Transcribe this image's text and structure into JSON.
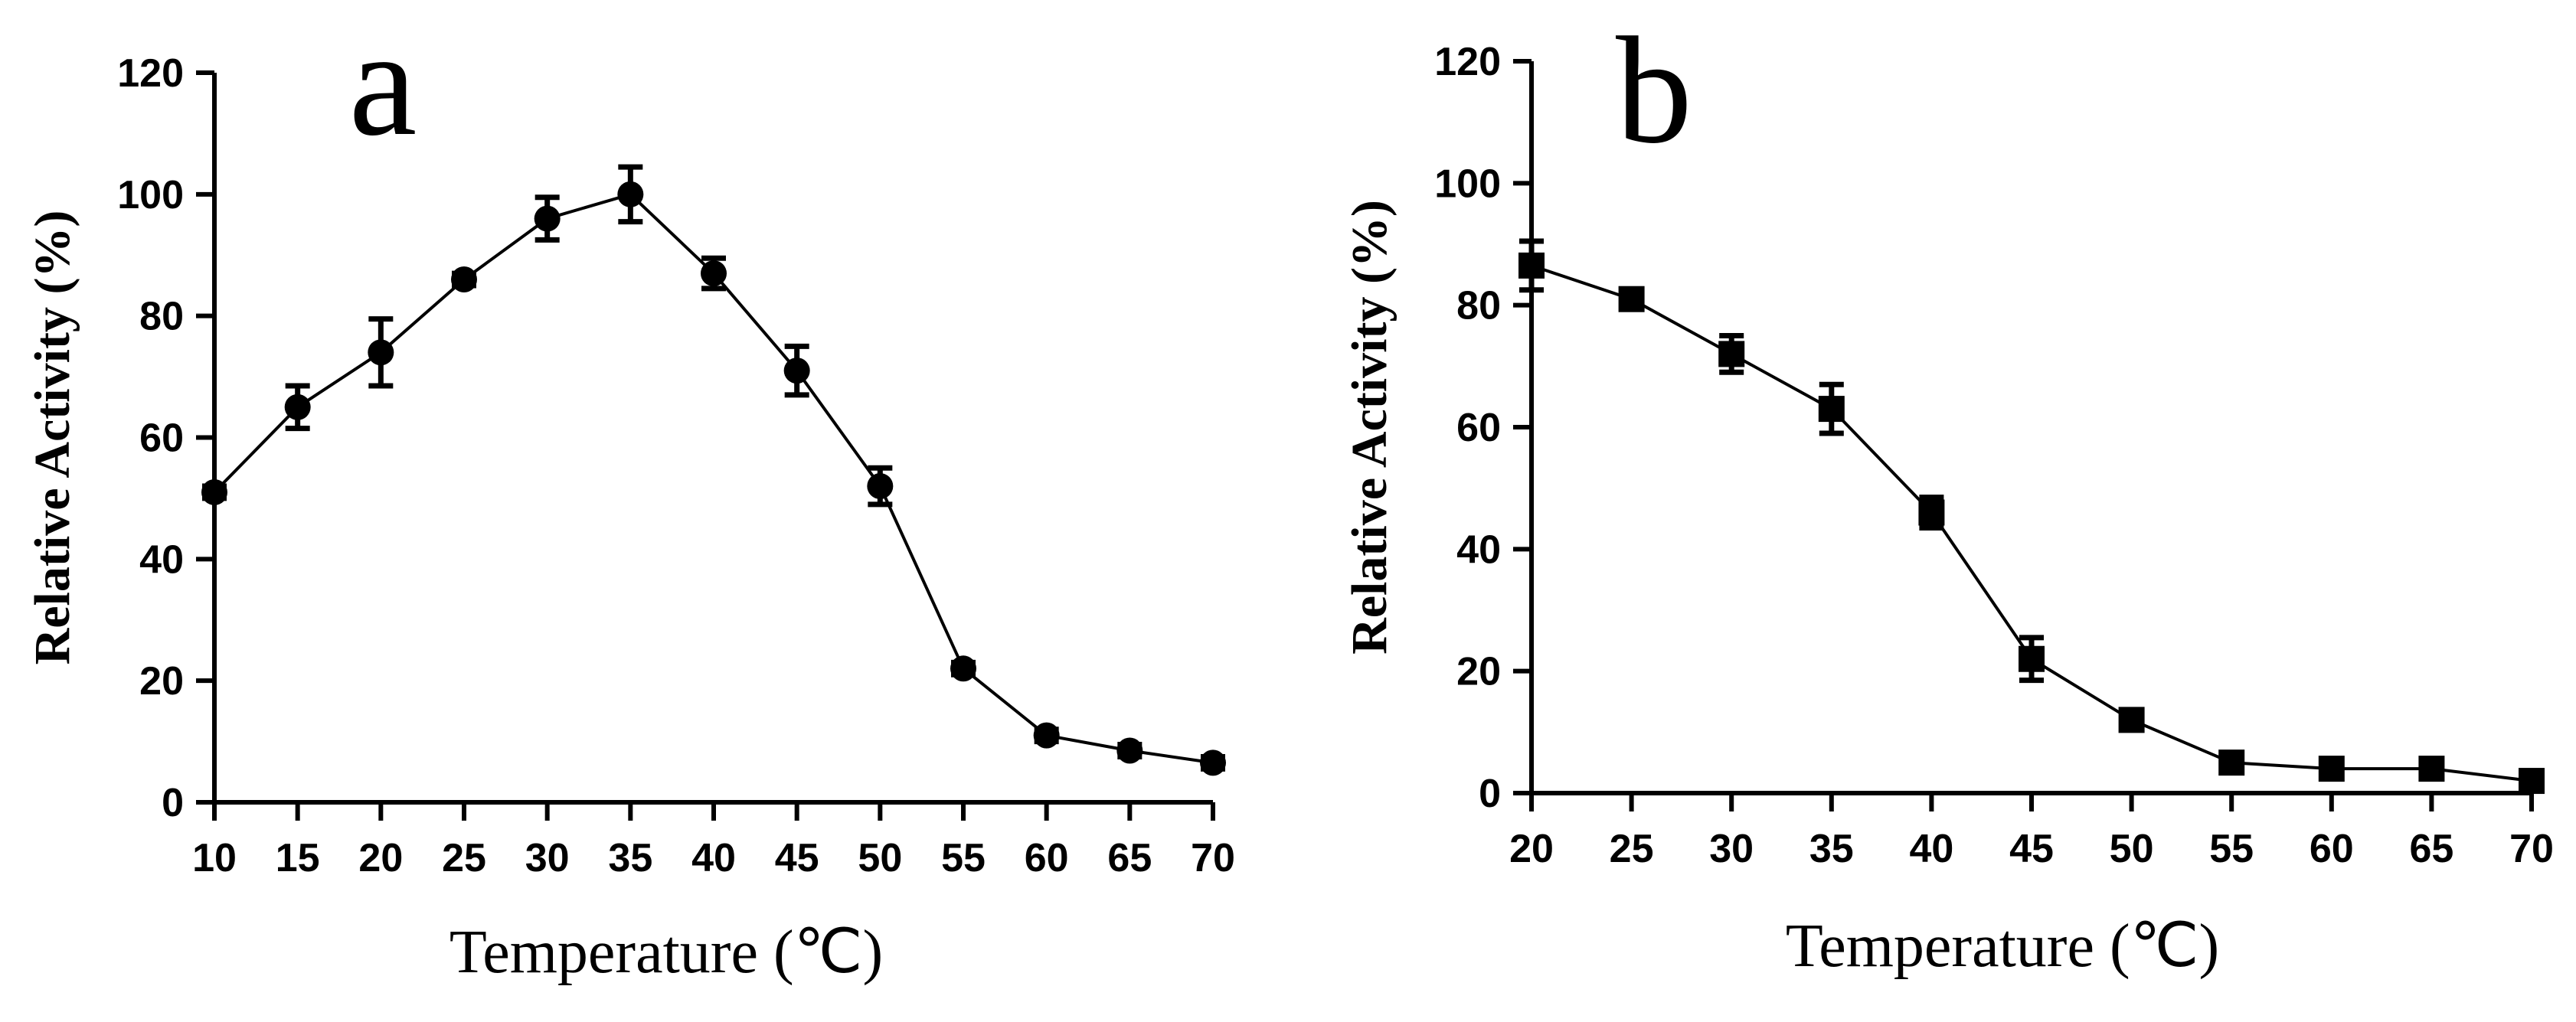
{
  "chart_data": [
    {
      "type": "line",
      "panel": "a",
      "marker": "circle",
      "xlabel": "Temperature (℃)",
      "ylabel": "Relative Activity (%)",
      "xlim": [
        10,
        70
      ],
      "ylim": [
        0,
        120
      ],
      "xticks": [
        10,
        15,
        20,
        25,
        30,
        35,
        40,
        45,
        50,
        55,
        60,
        65,
        70
      ],
      "yticks": [
        0,
        20,
        40,
        60,
        80,
        100,
        120
      ],
      "x": [
        10,
        15,
        20,
        25,
        30,
        35,
        40,
        45,
        50,
        55,
        60,
        65,
        70
      ],
      "y": [
        51,
        65,
        74,
        86,
        96,
        100,
        87,
        71,
        52,
        22,
        11,
        8.5,
        6.5
      ],
      "error": [
        1,
        3.5,
        5.5,
        1,
        3.5,
        4.5,
        2.5,
        4,
        3,
        1,
        1,
        1,
        1
      ]
    },
    {
      "type": "line",
      "panel": "b",
      "marker": "square",
      "xlabel": "Temperature (℃)",
      "ylabel": "Relative Activity (%)",
      "xlim": [
        20,
        70
      ],
      "ylim": [
        0,
        120
      ],
      "xticks": [
        20,
        25,
        30,
        35,
        40,
        45,
        50,
        55,
        60,
        65,
        70
      ],
      "yticks": [
        0,
        20,
        40,
        60,
        80,
        100,
        120
      ],
      "x": [
        20,
        25,
        30,
        35,
        40,
        45,
        50,
        55,
        60,
        65,
        70
      ],
      "y": [
        86.5,
        81,
        72,
        63,
        46,
        22,
        12,
        5,
        4,
        4,
        2
      ],
      "error": [
        4,
        1,
        3,
        4,
        2.5,
        3.5,
        1,
        1,
        1,
        1,
        1
      ]
    }
  ]
}
